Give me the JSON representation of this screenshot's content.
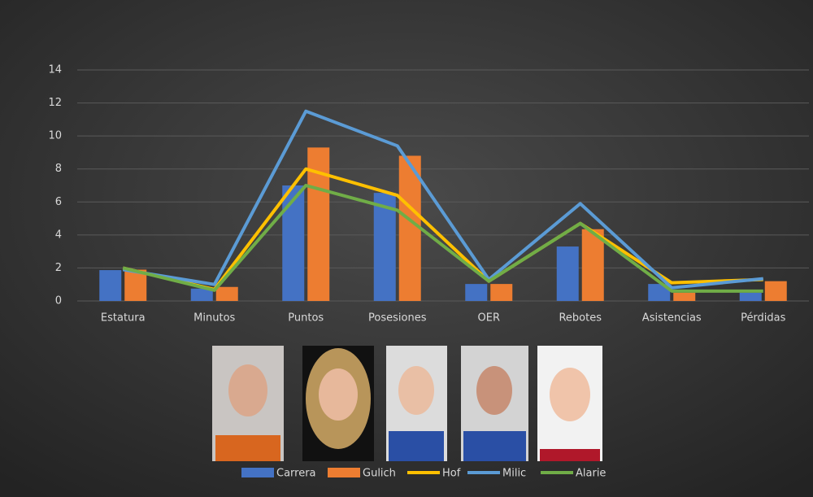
{
  "chart_data": {
    "type": "bar",
    "categories": [
      "Estatura",
      "Minutos",
      "Puntos",
      "Posesiones",
      "OER",
      "Rebotes",
      "Asistencias",
      "Pérdidas"
    ],
    "series": [
      {
        "name": "Carrera",
        "type": "bar",
        "color": "#4472c4",
        "values": [
          1.87,
          0.75,
          7.0,
          6.55,
          1.03,
          3.3,
          1.03,
          0.5
        ]
      },
      {
        "name": "Gulich",
        "type": "bar",
        "color": "#ed7d31",
        "values": [
          1.9,
          0.85,
          9.3,
          8.8,
          1.03,
          4.35,
          0.5,
          1.2
        ]
      },
      {
        "name": "Hof",
        "type": "line",
        "color": "#ffc000",
        "values": [
          2.0,
          0.7,
          8.0,
          6.4,
          1.2,
          4.7,
          1.1,
          1.3
        ]
      },
      {
        "name": "Milic",
        "type": "line",
        "color": "#5b9bd5",
        "values": [
          1.9,
          1.0,
          11.5,
          9.4,
          1.3,
          5.9,
          0.8,
          1.35
        ]
      },
      {
        "name": "Alarie",
        "type": "line",
        "color": "#70ad47",
        "values": [
          2.0,
          0.65,
          7.0,
          5.5,
          1.2,
          4.7,
          0.6,
          0.6
        ]
      }
    ],
    "ylim": [
      0,
      14
    ],
    "yticks": [
      0,
      2,
      4,
      6,
      8,
      10,
      12,
      14
    ],
    "grid": true,
    "legend": "bottom"
  }
}
